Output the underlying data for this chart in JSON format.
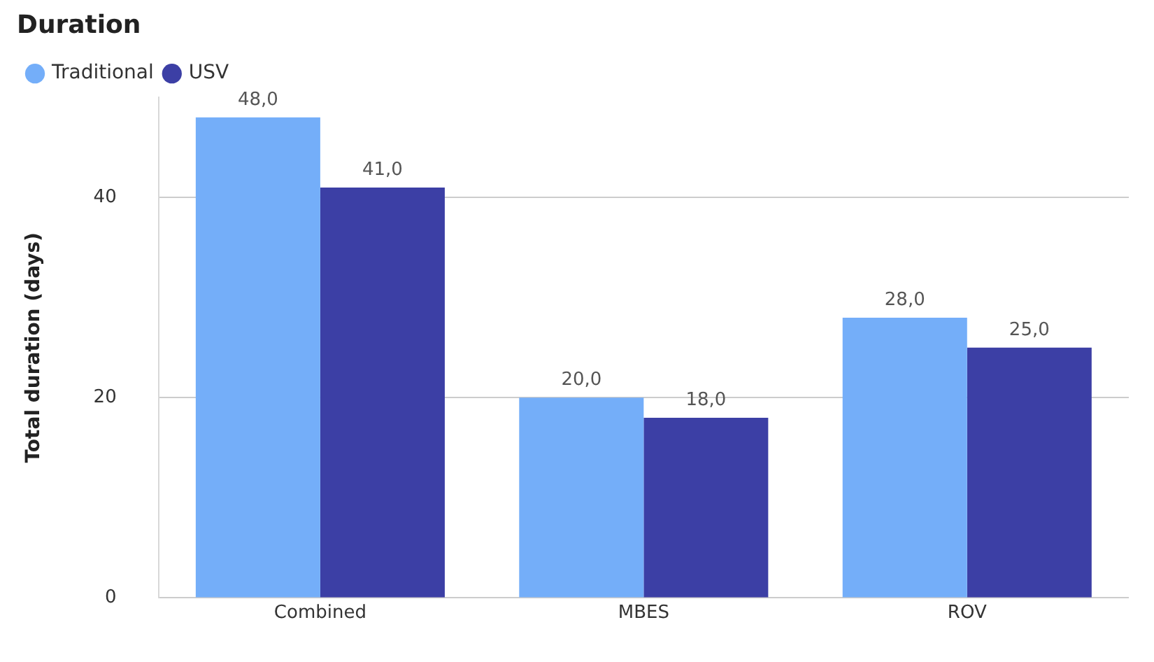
{
  "chart_data": {
    "type": "bar",
    "title": "Duration",
    "ylabel": "Total duration (days)",
    "categories": [
      "Combined",
      "MBES",
      "ROV"
    ],
    "series": [
      {
        "name": "Traditional",
        "color": "#74aef9",
        "values": [
          48,
          20,
          28
        ],
        "value_labels": [
          "48,0",
          "20,0",
          "28,0"
        ]
      },
      {
        "name": "USV",
        "color": "#3c3fa5",
        "values": [
          41,
          18,
          25
        ],
        "value_labels": [
          "41,0",
          "18,0",
          "25,0"
        ]
      }
    ],
    "ylim": [
      0,
      50
    ],
    "yticks": [
      0,
      20,
      40
    ],
    "grid": "y",
    "legend": "top left"
  }
}
